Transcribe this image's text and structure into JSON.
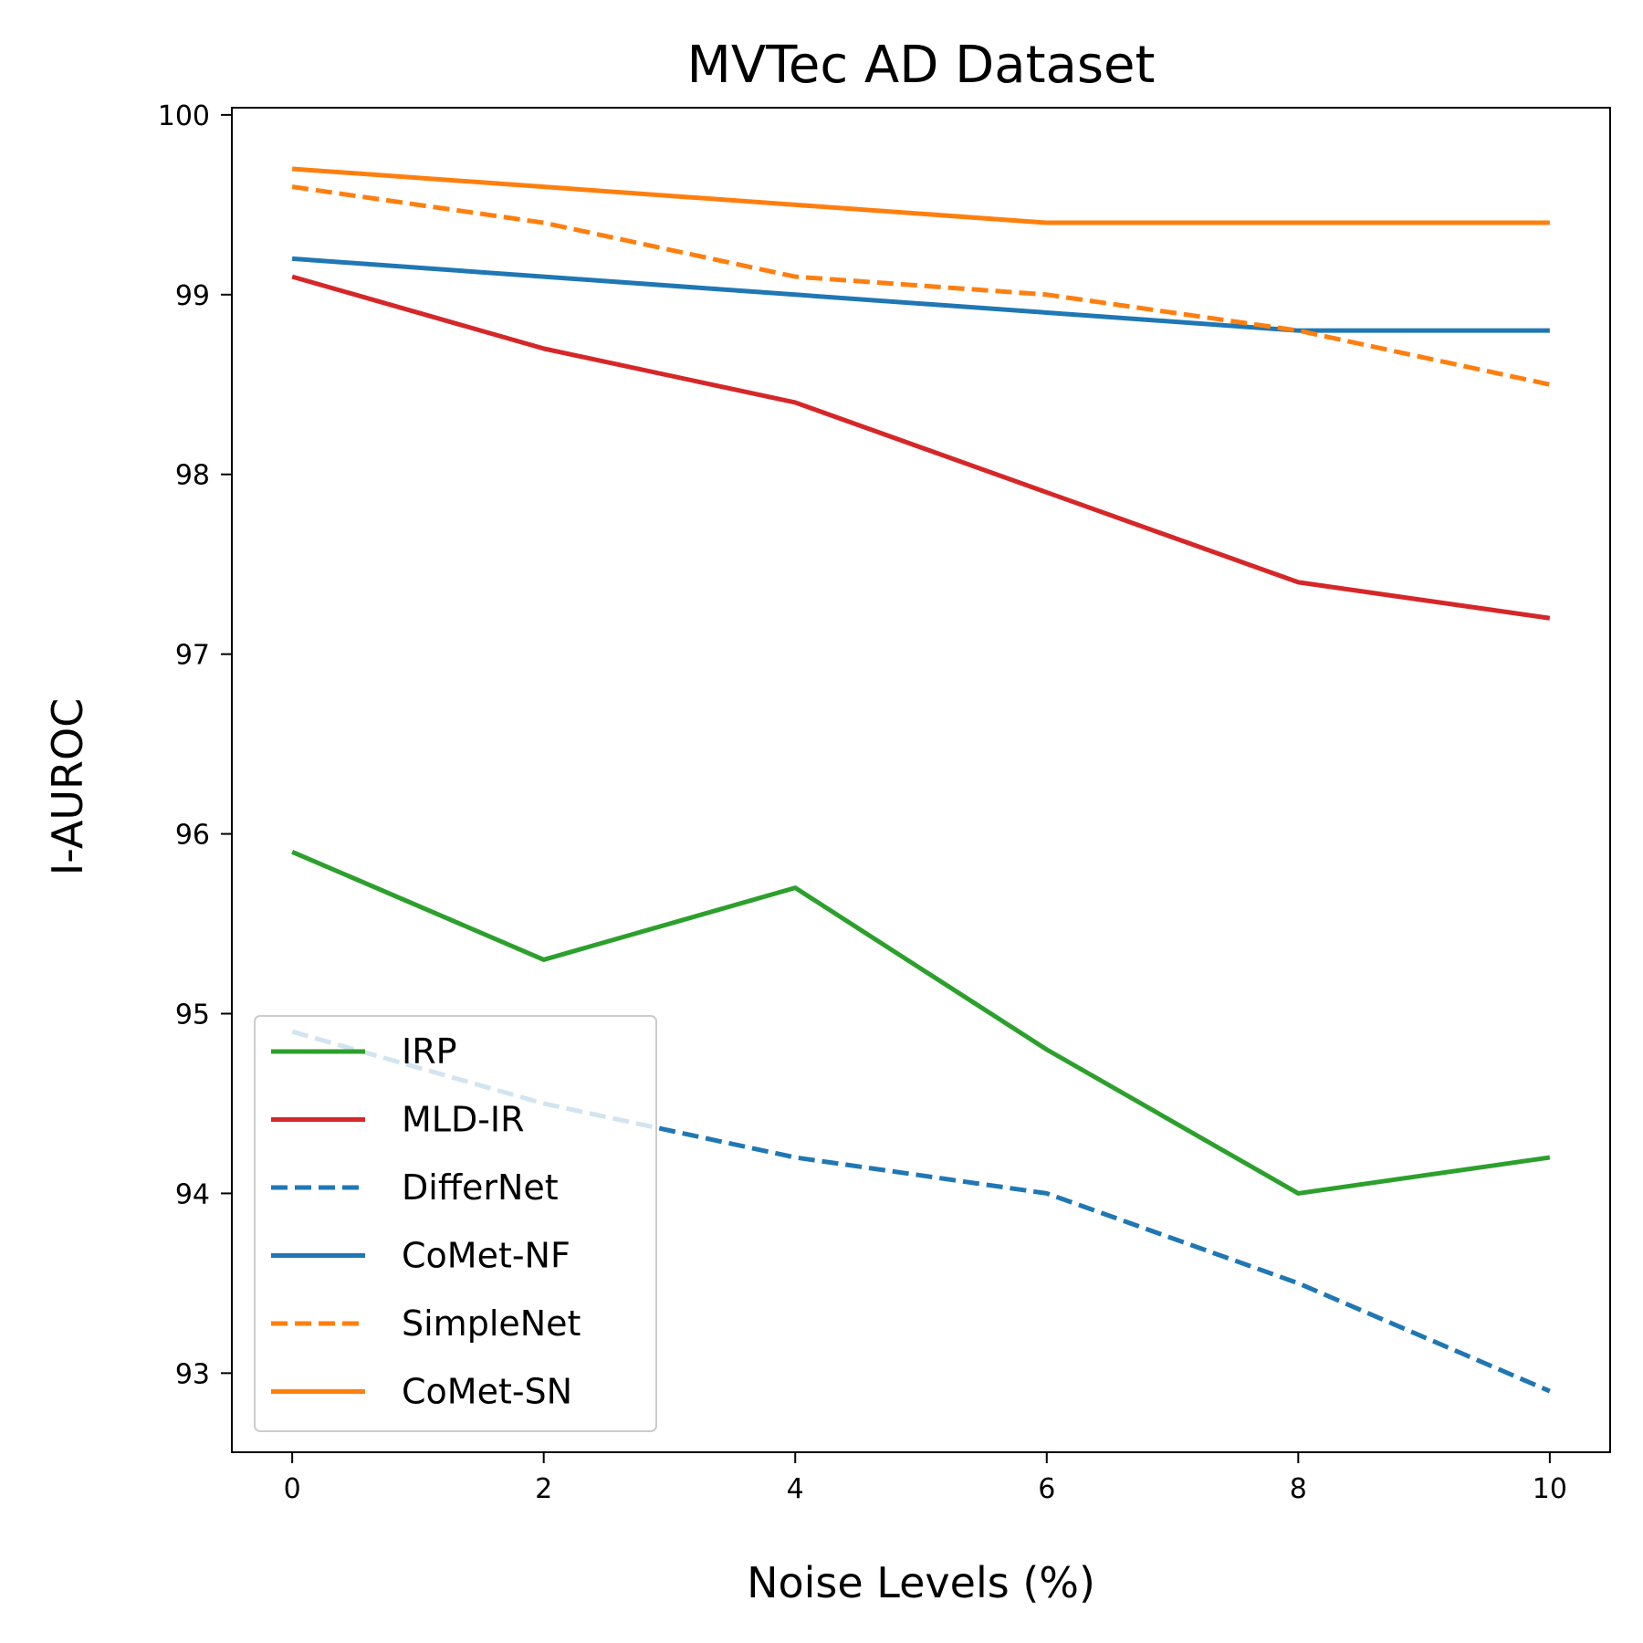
{
  "chart_data": {
    "type": "line",
    "title": "MVTec AD Dataset",
    "xlabel": "Noise Levels (%)",
    "ylabel": "I-AUROC",
    "x": [
      0,
      2,
      4,
      6,
      8,
      10
    ],
    "xticks": [
      0,
      2,
      4,
      6,
      8,
      10
    ],
    "yticks": [
      93,
      94,
      95,
      96,
      97,
      98,
      99,
      100
    ],
    "xlim": [
      -0.48,
      10.48
    ],
    "ylim": [
      92.56,
      100.04
    ],
    "grid": false,
    "legend_position": "lower-left",
    "series": [
      {
        "name": "IRP",
        "color": "#2ca02c",
        "style": "solid",
        "values": [
          95.9,
          95.3,
          95.7,
          94.8,
          94.0,
          94.2
        ]
      },
      {
        "name": "MLD-IR",
        "color": "#d62728",
        "style": "solid",
        "values": [
          99.1,
          98.7,
          98.4,
          97.9,
          97.4,
          97.2
        ]
      },
      {
        "name": "DifferNet",
        "color": "#1f77b4",
        "style": "dashed",
        "values": [
          94.9,
          94.5,
          94.2,
          94.0,
          93.5,
          92.9
        ]
      },
      {
        "name": "CoMet-NF",
        "color": "#1f77b4",
        "style": "solid",
        "values": [
          99.2,
          99.1,
          99.0,
          98.9,
          98.8,
          98.8
        ]
      },
      {
        "name": "SimpleNet",
        "color": "#ff7f0e",
        "style": "dashed",
        "values": [
          99.6,
          99.4,
          99.1,
          99.0,
          98.8,
          98.5
        ]
      },
      {
        "name": "CoMet-SN",
        "color": "#ff7f0e",
        "style": "solid",
        "values": [
          99.7,
          99.6,
          99.5,
          99.4,
          99.4,
          99.4
        ]
      }
    ]
  }
}
